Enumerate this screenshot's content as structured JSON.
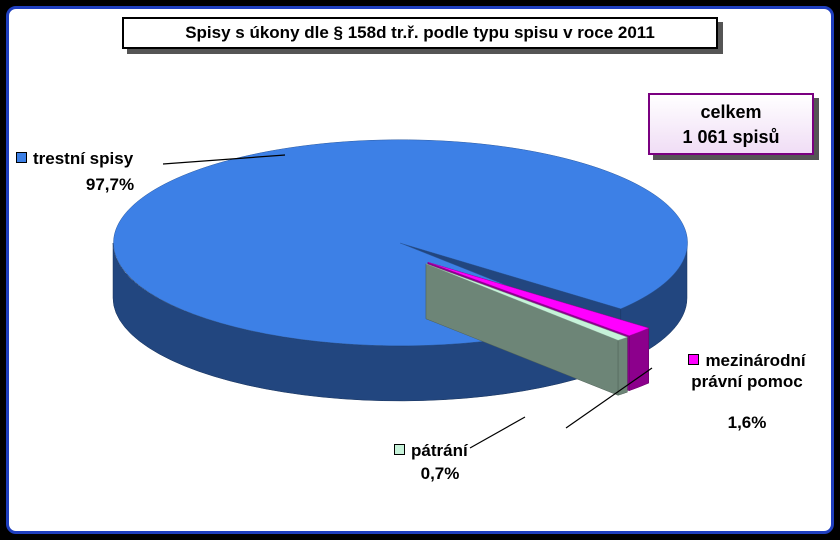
{
  "chart_data": {
    "type": "pie3d",
    "title": "Spisy s úkony dle § 158d tr.ř. podle typu spisu v roce 2011",
    "annotation": [
      "celkem",
      "1 061 spisů"
    ],
    "categories": [
      "trestní spisy",
      "mezinárodní právní pomoc",
      "pátrání"
    ],
    "values": [
      97.7,
      1.6,
      0.7
    ],
    "value_labels": [
      "97,7%",
      "1,6%",
      "0,7%"
    ],
    "colors": [
      "#3d80e6",
      "#ff00ff",
      "#c6f2d9"
    ]
  }
}
